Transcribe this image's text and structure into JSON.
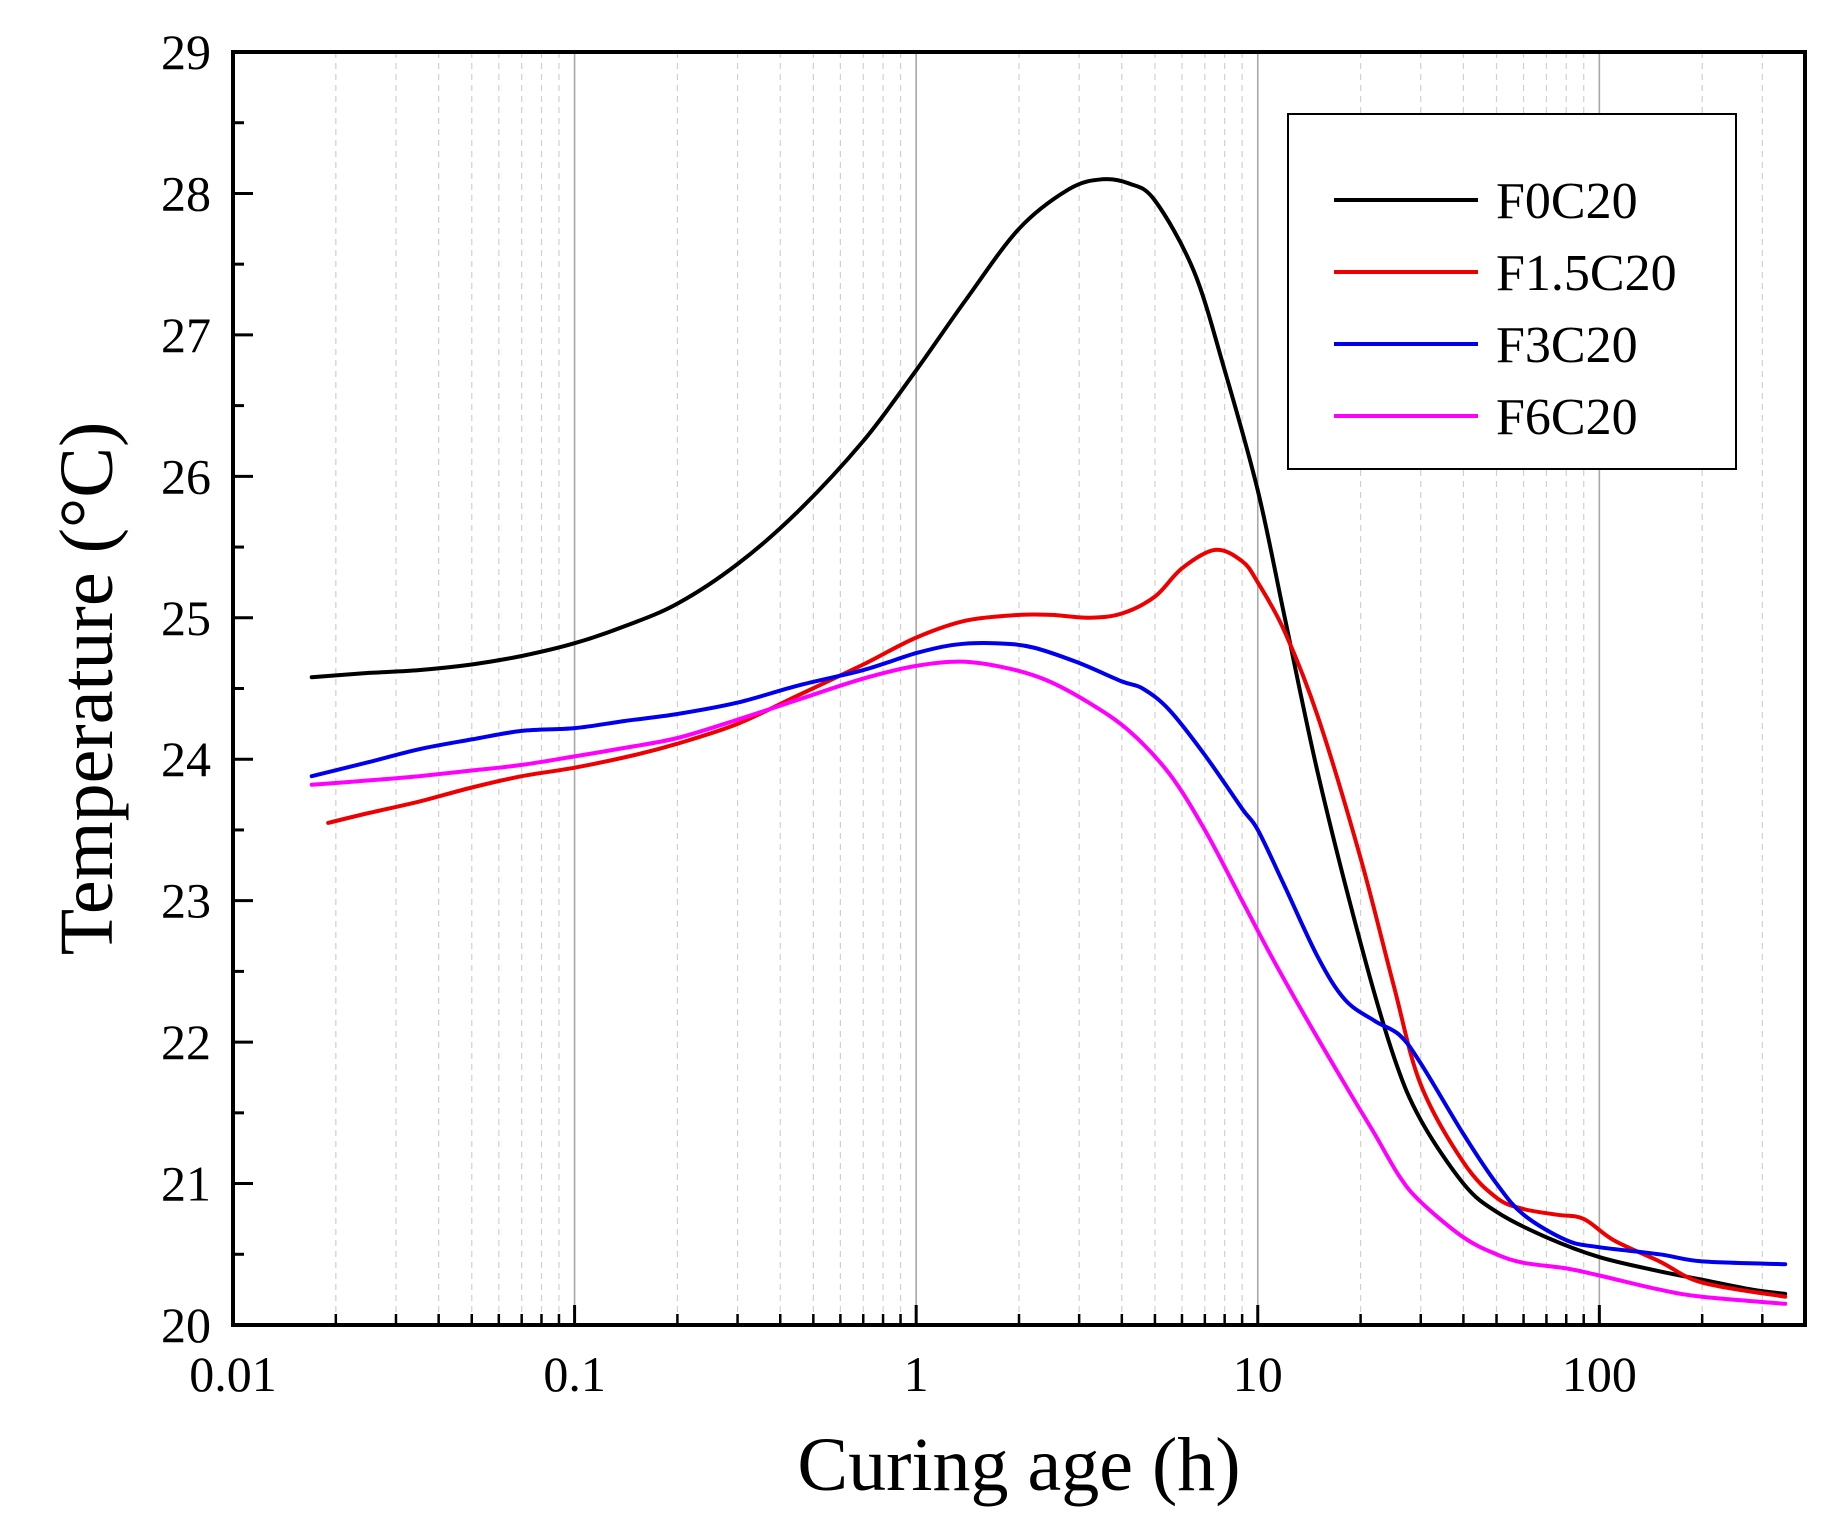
{
  "chart_data": {
    "type": "line",
    "title": "",
    "xlabel": "Curing age (h)",
    "ylabel": "Temperature (°C)",
    "xscale": "log",
    "xlim": [
      0.01,
      400
    ],
    "ylim": [
      20,
      29
    ],
    "xticks": [
      {
        "value": 0.01,
        "label": "0.01"
      },
      {
        "value": 0.1,
        "label": "0.1"
      },
      {
        "value": 1,
        "label": "1"
      },
      {
        "value": 10,
        "label": "10"
      },
      {
        "value": 100,
        "label": "100"
      }
    ],
    "yticks": [
      {
        "value": 20,
        "label": "20"
      },
      {
        "value": 21,
        "label": "21"
      },
      {
        "value": 22,
        "label": "22"
      },
      {
        "value": 23,
        "label": "23"
      },
      {
        "value": 24,
        "label": "24"
      },
      {
        "value": 25,
        "label": "25"
      },
      {
        "value": 26,
        "label": "26"
      },
      {
        "value": 27,
        "label": "27"
      },
      {
        "value": 28,
        "label": "28"
      },
      {
        "value": 29,
        "label": "29"
      }
    ],
    "grid": "vertical major and minor (log decades)",
    "legend_position": "top-right",
    "series": [
      {
        "name": "F0C20",
        "color": "#000000",
        "x": [
          0.017,
          0.025,
          0.035,
          0.05,
          0.07,
          0.1,
          0.14,
          0.2,
          0.3,
          0.45,
          0.7,
          1.0,
          1.4,
          2.0,
          2.8,
          3.5,
          4.2,
          5.0,
          6.5,
          8,
          10,
          12,
          15,
          20,
          25,
          30,
          40,
          50,
          70,
          100,
          150,
          200,
          280,
          350
        ],
        "y": [
          24.58,
          24.61,
          24.63,
          24.67,
          24.73,
          24.82,
          24.94,
          25.1,
          25.38,
          25.75,
          26.25,
          26.75,
          27.25,
          27.75,
          28.03,
          28.1,
          28.07,
          27.95,
          27.45,
          26.75,
          25.9,
          25.0,
          23.9,
          22.7,
          21.9,
          21.45,
          21.0,
          20.8,
          20.62,
          20.48,
          20.38,
          20.32,
          20.25,
          20.22
        ]
      },
      {
        "name": "F1.5C20",
        "color": "#ee0000",
        "x": [
          0.019,
          0.025,
          0.035,
          0.05,
          0.07,
          0.1,
          0.15,
          0.2,
          0.3,
          0.45,
          0.7,
          1.0,
          1.4,
          2.0,
          2.5,
          3.2,
          4.0,
          5.0,
          6.0,
          7.5,
          9,
          10,
          12,
          15,
          20,
          25,
          30,
          40,
          50,
          60,
          75,
          90,
          110,
          150,
          200,
          350
        ],
        "y": [
          23.55,
          23.62,
          23.7,
          23.8,
          23.88,
          23.94,
          24.03,
          24.11,
          24.25,
          24.45,
          24.67,
          24.86,
          24.98,
          25.02,
          25.02,
          25.0,
          25.03,
          25.15,
          25.35,
          25.48,
          25.4,
          25.25,
          24.9,
          24.3,
          23.3,
          22.4,
          21.7,
          21.15,
          20.9,
          20.82,
          20.78,
          20.75,
          20.6,
          20.45,
          20.3,
          20.2
        ]
      },
      {
        "name": "F3C20",
        "color": "#0000ee",
        "x": [
          0.017,
          0.025,
          0.035,
          0.05,
          0.07,
          0.1,
          0.14,
          0.2,
          0.3,
          0.45,
          0.7,
          1.0,
          1.3,
          1.7,
          2.2,
          3.0,
          4.0,
          4.6,
          5.5,
          7.0,
          9,
          10,
          12,
          15,
          18,
          22,
          26,
          30,
          40,
          50,
          60,
          80,
          100,
          150,
          200,
          350
        ],
        "y": [
          23.88,
          23.98,
          24.07,
          24.14,
          24.2,
          24.22,
          24.27,
          24.32,
          24.4,
          24.52,
          24.63,
          24.75,
          24.81,
          24.82,
          24.79,
          24.68,
          24.55,
          24.5,
          24.35,
          24.03,
          23.65,
          23.5,
          23.1,
          22.6,
          22.3,
          22.15,
          22.05,
          21.85,
          21.35,
          21.0,
          20.78,
          20.6,
          20.55,
          20.5,
          20.45,
          20.43
        ]
      },
      {
        "name": "F6C20",
        "color": "#ff00ff",
        "x": [
          0.017,
          0.025,
          0.035,
          0.05,
          0.07,
          0.1,
          0.14,
          0.2,
          0.3,
          0.45,
          0.7,
          1.0,
          1.35,
          1.8,
          2.4,
          3.2,
          4.2,
          5.5,
          7.0,
          9,
          11,
          14,
          18,
          22,
          26,
          30,
          40,
          50,
          60,
          80,
          100,
          150,
          200,
          350
        ],
        "y": [
          23.82,
          23.85,
          23.88,
          23.92,
          23.96,
          24.02,
          24.08,
          24.15,
          24.28,
          24.42,
          24.57,
          24.66,
          24.69,
          24.65,
          24.56,
          24.4,
          24.2,
          23.9,
          23.5,
          23.0,
          22.6,
          22.15,
          21.7,
          21.35,
          21.05,
          20.87,
          20.62,
          20.5,
          20.44,
          20.4,
          20.35,
          20.25,
          20.2,
          20.15
        ]
      }
    ]
  }
}
